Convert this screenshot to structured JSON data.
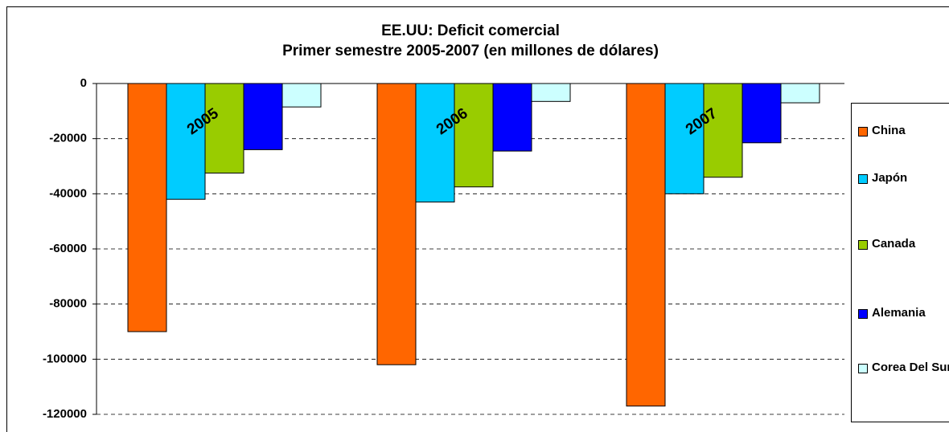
{
  "chart_data": {
    "type": "bar",
    "title": "EE.UU: Deficit comercial",
    "subtitle": "Primer semestre 2005-2007 (en millones de dólares)",
    "categories": [
      "2005",
      "2006",
      "2007"
    ],
    "series": [
      {
        "name": "China",
        "color": "#ff6600",
        "values": [
          -90000,
          -102000,
          -117000
        ]
      },
      {
        "name": "Japón",
        "color": "#00ccff",
        "values": [
          -42000,
          -43000,
          -40000
        ]
      },
      {
        "name": "Canada",
        "color": "#99cc00",
        "values": [
          -32500,
          -37500,
          -34000
        ]
      },
      {
        "name": "Alemania",
        "color": "#0000ff",
        "values": [
          -24000,
          -24500,
          -21500
        ]
      },
      {
        "name": "Corea Del Sur",
        "color": "#ccffff",
        "values": [
          -8500,
          -6500,
          -7000
        ]
      }
    ],
    "ylim": [
      -120000,
      0
    ],
    "yticks": [
      0,
      -20000,
      -40000,
      -60000,
      -80000,
      -100000,
      -120000
    ],
    "grid": true,
    "legend": "right"
  }
}
